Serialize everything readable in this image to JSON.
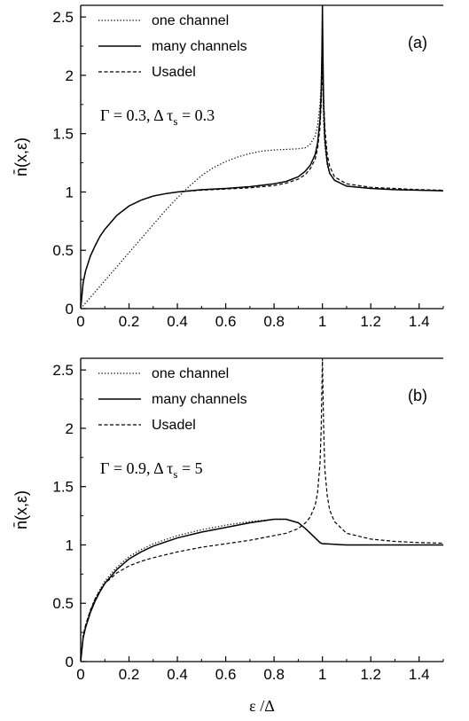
{
  "chart_data": [
    {
      "type": "line",
      "panel_label": "(a)",
      "parameters_text": "Γ = 0.3,   Δ τs = 0.3",
      "ylabel": "n̄(x,ε)",
      "xlabel": "",
      "xlim": [
        0,
        1.5
      ],
      "ylim": [
        0,
        2.6
      ],
      "xticks": [
        "0",
        "0.2",
        "0.4",
        "0.6",
        "0.8",
        "1",
        "1.2",
        "1.4"
      ],
      "yticks": [
        "0",
        "0.5",
        "1",
        "1.5",
        "2",
        "2.5"
      ],
      "legend_position": "top-left",
      "series": [
        {
          "name": "one channel",
          "style": "dotted",
          "x": [
            0,
            0.05,
            0.1,
            0.15,
            0.2,
            0.25,
            0.3,
            0.35,
            0.4,
            0.45,
            0.5,
            0.55,
            0.6,
            0.65,
            0.7,
            0.75,
            0.8,
            0.85,
            0.9,
            0.93,
            0.95,
            0.97,
            0.98,
            0.99,
            0.995,
            1.0,
            1.005,
            1.01,
            1.02,
            1.03,
            1.05,
            1.1,
            1.2,
            1.3,
            1.4,
            1.5
          ],
          "y": [
            0,
            0.12,
            0.24,
            0.36,
            0.48,
            0.6,
            0.72,
            0.84,
            0.95,
            1.05,
            1.14,
            1.21,
            1.26,
            1.3,
            1.33,
            1.35,
            1.36,
            1.365,
            1.37,
            1.38,
            1.41,
            1.48,
            1.57,
            1.75,
            1.95,
            2.3,
            1.6,
            1.4,
            1.23,
            1.16,
            1.1,
            1.05,
            1.03,
            1.02,
            1.015,
            1.01
          ]
        },
        {
          "name": "many channels",
          "style": "solid",
          "x": [
            0,
            0.01,
            0.02,
            0.04,
            0.06,
            0.08,
            0.1,
            0.15,
            0.2,
            0.25,
            0.3,
            0.35,
            0.4,
            0.5,
            0.6,
            0.7,
            0.8,
            0.85,
            0.9,
            0.93,
            0.95,
            0.97,
            0.98,
            0.99,
            0.995,
            0.998,
            1.0,
            1.002,
            1.005,
            1.01,
            1.02,
            1.03,
            1.05,
            1.1,
            1.2,
            1.3,
            1.4,
            1.5
          ],
          "y": [
            0,
            0.22,
            0.32,
            0.45,
            0.54,
            0.62,
            0.68,
            0.8,
            0.88,
            0.93,
            0.965,
            0.985,
            1.0,
            1.02,
            1.03,
            1.045,
            1.07,
            1.09,
            1.13,
            1.18,
            1.23,
            1.32,
            1.42,
            1.62,
            1.85,
            2.2,
            2.6,
            2.2,
            1.75,
            1.45,
            1.25,
            1.16,
            1.1,
            1.05,
            1.03,
            1.02,
            1.015,
            1.01
          ]
        },
        {
          "name": "Usadel",
          "style": "dashed",
          "x": [
            0,
            0.01,
            0.02,
            0.04,
            0.06,
            0.08,
            0.1,
            0.15,
            0.2,
            0.25,
            0.3,
            0.35,
            0.4,
            0.5,
            0.6,
            0.7,
            0.8,
            0.85,
            0.9,
            0.93,
            0.95,
            0.97,
            0.98,
            0.99,
            0.995,
            1.0,
            1.005,
            1.01,
            1.02,
            1.03,
            1.05,
            1.1,
            1.2,
            1.3,
            1.4,
            1.5
          ],
          "y": [
            0,
            0.22,
            0.32,
            0.45,
            0.54,
            0.62,
            0.68,
            0.8,
            0.88,
            0.93,
            0.965,
            0.985,
            1.0,
            1.015,
            1.025,
            1.035,
            1.055,
            1.075,
            1.11,
            1.15,
            1.2,
            1.28,
            1.37,
            1.55,
            1.75,
            2.05,
            1.8,
            1.55,
            1.32,
            1.22,
            1.13,
            1.07,
            1.04,
            1.03,
            1.02,
            1.015
          ]
        }
      ]
    },
    {
      "type": "line",
      "panel_label": "(b)",
      "parameters_text": "Γ = 0.9,   Δ τs = 5",
      "ylabel": "n̄(x,ε)",
      "xlabel": "ε /Δ",
      "xlim": [
        0,
        1.5
      ],
      "ylim": [
        0,
        2.6
      ],
      "xticks": [
        "0",
        "0.2",
        "0.4",
        "0.6",
        "0.8",
        "1",
        "1.2",
        "1.4"
      ],
      "yticks": [
        "0",
        "0.5",
        "1",
        "1.5",
        "2",
        "2.5"
      ],
      "legend_position": "top-left",
      "series": [
        {
          "name": "one channel",
          "style": "dotted",
          "x": [
            0,
            0.01,
            0.02,
            0.04,
            0.06,
            0.08,
            0.1,
            0.15,
            0.2,
            0.25,
            0.3,
            0.4,
            0.5,
            0.6,
            0.7,
            0.8,
            0.85,
            0.9,
            0.93,
            0.95,
            0.97,
            0.99,
            1.0,
            1.01,
            1.05,
            1.1,
            1.2,
            1.3,
            1.4,
            1.5
          ],
          "y": [
            0,
            0.22,
            0.31,
            0.44,
            0.54,
            0.62,
            0.69,
            0.81,
            0.9,
            0.96,
            1.01,
            1.08,
            1.13,
            1.17,
            1.2,
            1.22,
            1.22,
            1.19,
            1.14,
            1.1,
            1.06,
            1.02,
            1.01,
            1.01,
            1.005,
            1.0,
            1.0,
            1.0,
            1.0,
            1.0
          ]
        },
        {
          "name": "many channels",
          "style": "solid",
          "x": [
            0,
            0.01,
            0.02,
            0.04,
            0.06,
            0.08,
            0.1,
            0.15,
            0.2,
            0.25,
            0.3,
            0.4,
            0.5,
            0.6,
            0.7,
            0.8,
            0.85,
            0.9,
            0.93,
            0.95,
            0.97,
            0.99,
            1.0,
            1.01,
            1.05,
            1.1,
            1.2,
            1.3,
            1.4,
            1.5
          ],
          "y": [
            0,
            0.2,
            0.29,
            0.42,
            0.52,
            0.6,
            0.67,
            0.79,
            0.88,
            0.94,
            0.99,
            1.06,
            1.11,
            1.15,
            1.19,
            1.22,
            1.22,
            1.19,
            1.14,
            1.1,
            1.06,
            1.02,
            1.01,
            1.01,
            1.005,
            1.0,
            1.0,
            1.0,
            1.0,
            1.0
          ]
        },
        {
          "name": "Usadel",
          "style": "dashed",
          "x": [
            0,
            0.01,
            0.02,
            0.04,
            0.06,
            0.08,
            0.1,
            0.15,
            0.2,
            0.25,
            0.3,
            0.4,
            0.5,
            0.6,
            0.7,
            0.8,
            0.85,
            0.9,
            0.93,
            0.95,
            0.97,
            0.98,
            0.99,
            0.995,
            1.0,
            1.005,
            1.01,
            1.02,
            1.03,
            1.05,
            1.1,
            1.2,
            1.3,
            1.4,
            1.5
          ],
          "y": [
            0,
            0.22,
            0.31,
            0.44,
            0.54,
            0.61,
            0.67,
            0.76,
            0.82,
            0.86,
            0.89,
            0.94,
            0.98,
            1.01,
            1.04,
            1.08,
            1.1,
            1.14,
            1.19,
            1.24,
            1.34,
            1.45,
            1.7,
            2.0,
            2.6,
            2.0,
            1.65,
            1.42,
            1.3,
            1.2,
            1.1,
            1.05,
            1.03,
            1.02,
            1.015
          ]
        }
      ]
    }
  ]
}
